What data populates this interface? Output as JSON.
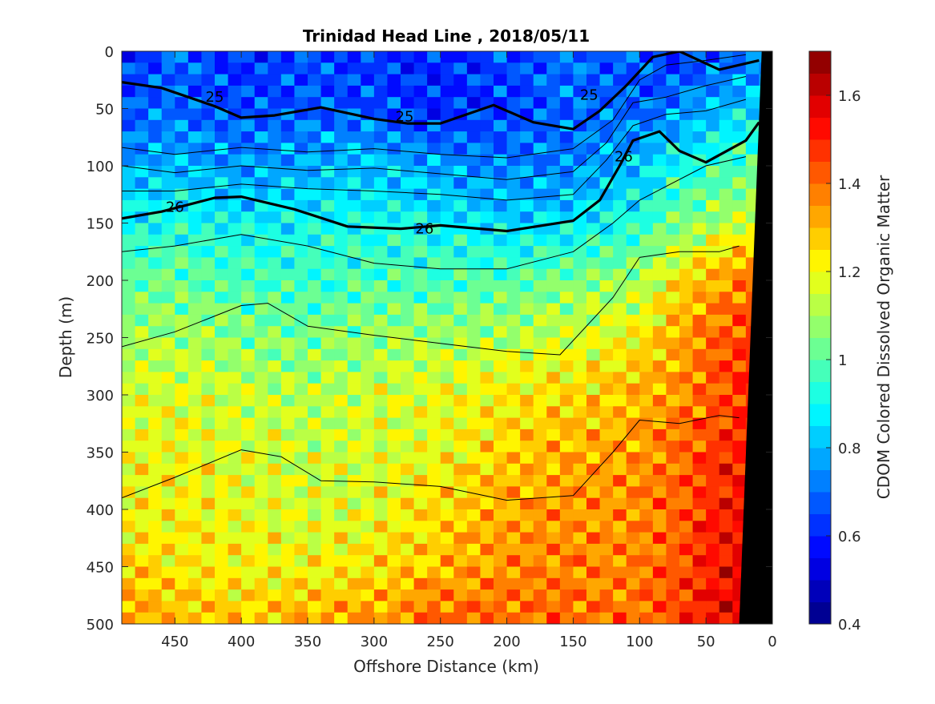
{
  "chart_data": {
    "type": "heatmap",
    "title": "Trinidad Head Line , 2018/05/11",
    "xlabel": "Offshore Distance (km)",
    "ylabel": "Depth (m)",
    "colorbar_label": "CDOM Colored Dissolved Organic Matter",
    "xlim": [
      490,
      0
    ],
    "ylim": [
      0,
      500
    ],
    "clim": [
      0.4,
      1.7
    ],
    "x_reversed": true,
    "y_reversed": true,
    "x_ticks": [
      450,
      400,
      350,
      300,
      250,
      200,
      150,
      100,
      50,
      0
    ],
    "y_ticks": [
      0,
      50,
      100,
      150,
      200,
      250,
      300,
      350,
      400,
      450,
      500
    ],
    "colorbar_ticks": [
      0.4,
      0.6,
      0.8,
      1,
      1.2,
      1.4,
      1.6
    ],
    "colorbar_levels": 26,
    "colormap": "jet",
    "grid": false,
    "depth_profile": [
      {
        "depth": 0,
        "values": [
          0.62,
          0.68,
          0.6,
          0.66,
          0.63,
          0.59,
          0.65,
          0.7,
          0.66,
          0.6,
          0.68,
          0.72
        ]
      },
      {
        "depth": 50,
        "values": [
          0.66,
          0.7,
          0.64,
          0.68,
          0.66,
          0.6,
          0.64,
          0.7,
          0.68,
          0.74,
          0.8,
          0.86
        ]
      },
      {
        "depth": 100,
        "values": [
          0.78,
          0.8,
          0.76,
          0.78,
          0.82,
          0.76,
          0.72,
          0.74,
          0.82,
          0.9,
          0.96,
          1.02
        ]
      },
      {
        "depth": 150,
        "values": [
          0.9,
          0.92,
          0.88,
          0.9,
          0.92,
          0.88,
          0.84,
          0.86,
          0.94,
          1.06,
          1.12,
          1.16
        ]
      },
      {
        "depth": 200,
        "values": [
          1.0,
          1.02,
          0.98,
          0.96,
          0.98,
          0.98,
          1.0,
          1.04,
          1.1,
          1.24,
          1.34,
          1.42
        ]
      },
      {
        "depth": 250,
        "values": [
          1.08,
          1.1,
          1.06,
          1.04,
          1.08,
          1.1,
          1.12,
          1.16,
          1.22,
          1.32,
          1.42,
          1.48
        ]
      },
      {
        "depth": 300,
        "values": [
          1.16,
          1.18,
          1.14,
          1.12,
          1.16,
          1.18,
          1.22,
          1.26,
          1.3,
          1.36,
          1.44,
          1.5
        ]
      },
      {
        "depth": 350,
        "values": [
          1.18,
          1.2,
          1.16,
          1.14,
          1.16,
          1.2,
          1.28,
          1.32,
          1.34,
          1.4,
          1.48,
          1.52
        ]
      },
      {
        "depth": 400,
        "values": [
          1.2,
          1.22,
          1.18,
          1.16,
          1.18,
          1.26,
          1.32,
          1.36,
          1.36,
          1.42,
          1.5,
          1.56
        ]
      },
      {
        "depth": 450,
        "values": [
          1.26,
          1.24,
          1.22,
          1.2,
          1.24,
          1.3,
          1.36,
          1.38,
          1.38,
          1.44,
          1.52,
          1.58
        ]
      },
      {
        "depth": 500,
        "values": [
          1.36,
          1.3,
          1.28,
          1.32,
          1.36,
          1.42,
          1.4,
          1.4,
          1.4,
          1.46,
          1.54,
          1.6
        ]
      }
    ],
    "profile_distances": [
      490,
      450,
      400,
      350,
      300,
      250,
      200,
      150,
      100,
      70,
      40,
      10
    ],
    "contours": [
      {
        "name": "25",
        "bold": true,
        "labels": [
          {
            "x": 420,
            "y": 40
          },
          {
            "x": 277,
            "y": 57
          },
          {
            "x": 138,
            "y": 38
          }
        ],
        "points": [
          [
            490,
            27
          ],
          [
            460,
            32
          ],
          [
            420,
            48
          ],
          [
            400,
            58
          ],
          [
            375,
            56
          ],
          [
            340,
            49
          ],
          [
            300,
            59
          ],
          [
            275,
            63
          ],
          [
            250,
            63
          ],
          [
            210,
            47
          ],
          [
            180,
            62
          ],
          [
            150,
            68
          ],
          [
            130,
            52
          ],
          [
            110,
            30
          ],
          [
            90,
            5
          ],
          [
            70,
            0
          ],
          [
            40,
            16
          ],
          [
            10,
            8
          ]
        ]
      },
      {
        "name": "26",
        "bold": true,
        "labels": [
          {
            "x": 450,
            "y": 136
          },
          {
            "x": 262,
            "y": 155
          },
          {
            "x": 112,
            "y": 92
          }
        ],
        "points": [
          [
            490,
            146
          ],
          [
            460,
            140
          ],
          [
            420,
            128
          ],
          [
            400,
            127
          ],
          [
            360,
            138
          ],
          [
            320,
            153
          ],
          [
            280,
            155
          ],
          [
            250,
            152
          ],
          [
            200,
            157
          ],
          [
            150,
            148
          ],
          [
            130,
            130
          ],
          [
            115,
            100
          ],
          [
            105,
            78
          ],
          [
            85,
            70
          ],
          [
            70,
            87
          ],
          [
            50,
            97
          ],
          [
            20,
            78
          ],
          [
            10,
            62
          ]
        ]
      },
      {
        "name": "",
        "bold": false,
        "labels": [],
        "points": [
          [
            490,
            84
          ],
          [
            450,
            90
          ],
          [
            400,
            84
          ],
          [
            350,
            88
          ],
          [
            300,
            85
          ],
          [
            250,
            90
          ],
          [
            200,
            93
          ],
          [
            150,
            85
          ],
          [
            120,
            60
          ],
          [
            100,
            25
          ],
          [
            80,
            12
          ],
          [
            50,
            8
          ],
          [
            20,
            3
          ]
        ]
      },
      {
        "name": "",
        "bold": false,
        "labels": [],
        "points": [
          [
            490,
            100
          ],
          [
            450,
            106
          ],
          [
            400,
            100
          ],
          [
            350,
            104
          ],
          [
            300,
            102
          ],
          [
            250,
            107
          ],
          [
            200,
            112
          ],
          [
            150,
            105
          ],
          [
            125,
            80
          ],
          [
            105,
            45
          ],
          [
            80,
            40
          ],
          [
            50,
            30
          ],
          [
            20,
            22
          ]
        ]
      },
      {
        "name": "",
        "bold": false,
        "labels": [],
        "points": [
          [
            490,
            122
          ],
          [
            450,
            122
          ],
          [
            400,
            116
          ],
          [
            350,
            120
          ],
          [
            300,
            122
          ],
          [
            250,
            125
          ],
          [
            200,
            130
          ],
          [
            150,
            125
          ],
          [
            125,
            95
          ],
          [
            105,
            65
          ],
          [
            80,
            55
          ],
          [
            50,
            52
          ],
          [
            20,
            42
          ]
        ]
      },
      {
        "name": "",
        "bold": false,
        "labels": [],
        "points": [
          [
            490,
            175
          ],
          [
            450,
            170
          ],
          [
            400,
            160
          ],
          [
            350,
            170
          ],
          [
            300,
            185
          ],
          [
            250,
            190
          ],
          [
            200,
            190
          ],
          [
            150,
            175
          ],
          [
            120,
            150
          ],
          [
            100,
            130
          ],
          [
            80,
            118
          ],
          [
            50,
            100
          ],
          [
            20,
            92
          ]
        ]
      },
      {
        "name": "",
        "bold": false,
        "labels": [],
        "points": [
          [
            490,
            258
          ],
          [
            450,
            245
          ],
          [
            400,
            222
          ],
          [
            380,
            220
          ],
          [
            350,
            240
          ],
          [
            300,
            248
          ],
          [
            250,
            255
          ],
          [
            200,
            262
          ],
          [
            160,
            265
          ],
          [
            120,
            215
          ],
          [
            100,
            180
          ],
          [
            70,
            175
          ],
          [
            40,
            175
          ],
          [
            25,
            170
          ]
        ]
      },
      {
        "name": "",
        "bold": false,
        "labels": [],
        "points": [
          [
            490,
            390
          ],
          [
            450,
            372
          ],
          [
            400,
            348
          ],
          [
            370,
            354
          ],
          [
            340,
            375
          ],
          [
            300,
            376
          ],
          [
            250,
            380
          ],
          [
            200,
            392
          ],
          [
            150,
            388
          ],
          [
            120,
            350
          ],
          [
            100,
            322
          ],
          [
            70,
            325
          ],
          [
            40,
            318
          ],
          [
            25,
            320
          ]
        ]
      }
    ],
    "bathymetry_wedge": [
      [
        8,
        0
      ],
      [
        25,
        500
      ],
      [
        0,
        500
      ],
      [
        0,
        0
      ]
    ]
  }
}
